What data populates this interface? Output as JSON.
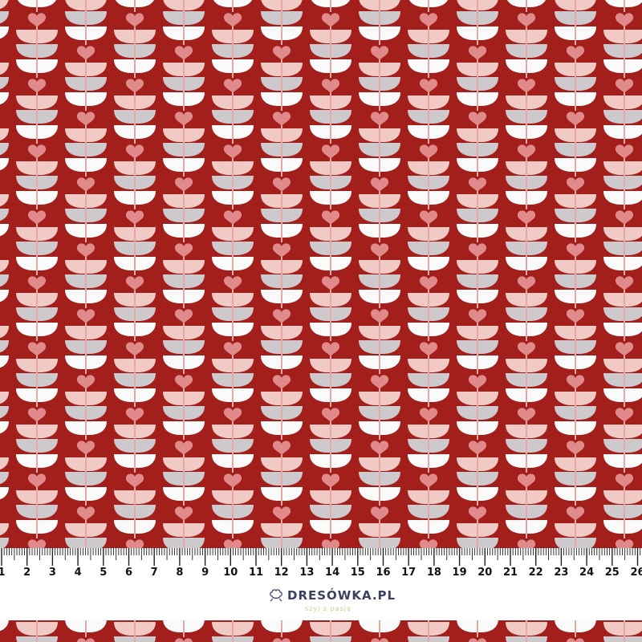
{
  "colors": {
    "background": "#a31f1c",
    "leaf_pink": "#f2cac5",
    "leaf_gray": "#cec9cd",
    "leaf_white": "#fbfafa",
    "heart": "#e08a8b",
    "stem": "#e8a9a4",
    "logo_text": "#3b4260",
    "tagline": "#d9c48a"
  },
  "ruler": {
    "unit": "cm",
    "numbers": [
      "1",
      "2",
      "3",
      "4",
      "5",
      "6",
      "7",
      "8",
      "9",
      "10",
      "11",
      "12",
      "13",
      "14",
      "15",
      "16",
      "17",
      "18",
      "19",
      "20",
      "21",
      "22",
      "23",
      "24",
      "25",
      "26"
    ]
  },
  "logo": {
    "icon": "cotton-flower-icon",
    "text": "DRESÓWKA.PL",
    "tagline": "szyj z pasją"
  }
}
